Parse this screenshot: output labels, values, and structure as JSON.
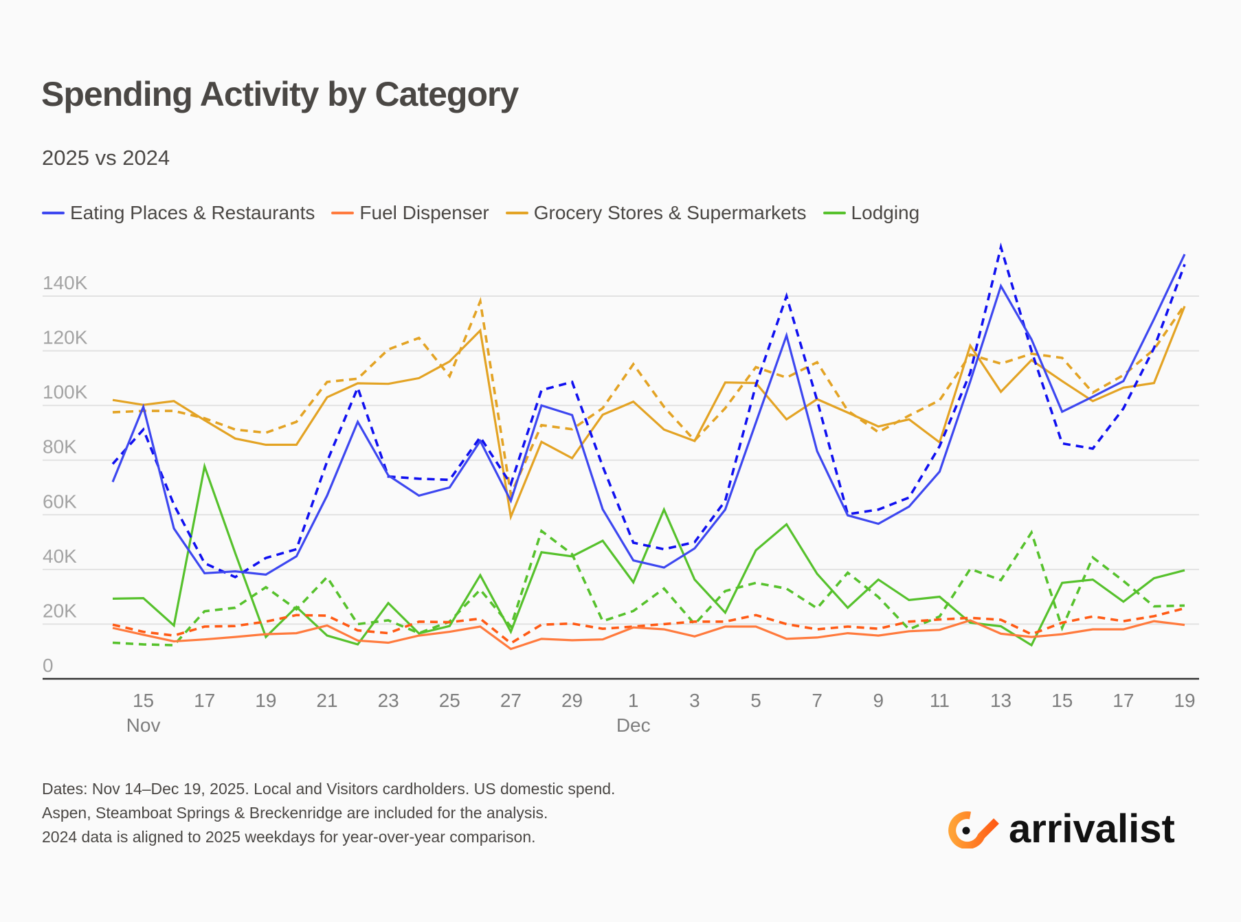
{
  "header": {
    "title": "Spending Activity by Category",
    "subtitle": "2025 vs 2024"
  },
  "legend": [
    {
      "label": "Eating Places & Restaurants",
      "color": "#3d47f0"
    },
    {
      "label": "Fuel Dispenser",
      "color": "#ff7a3d"
    },
    {
      "label": "Grocery Stores & Supermarkets",
      "color": "#e3a324"
    },
    {
      "label": "Lodging",
      "color": "#56c12c"
    }
  ],
  "footnote": [
    "Dates: Nov 14–Dec 19, 2025. Local and Visitors cardholders. US domestic spend.",
    "Aspen, Steamboat Springs & Breckenridge are included for the analysis.",
    "2024 data is aligned to 2025 weekdays for year-over-year comparison."
  ],
  "logo": {
    "text": "arrivalist",
    "icon": "arrivalist-eye-icon",
    "accent": "#ff7a1a"
  },
  "chart_data": {
    "type": "line",
    "title": "Spending Activity by Category",
    "subtitle": "2025 vs 2024",
    "xlabel": "",
    "ylabel": "",
    "ylim": [
      0,
      160000
    ],
    "yticks": [
      0,
      20000,
      40000,
      60000,
      80000,
      100000,
      120000,
      140000
    ],
    "ytick_labels": [
      "0",
      "20K",
      "40K",
      "60K",
      "80K",
      "100K",
      "120K",
      "140K"
    ],
    "grid": true,
    "legend_position": "top-left",
    "line_style_note": "solid = 2025, dashed = 2024",
    "x": [
      "Nov 14",
      "Nov 15",
      "Nov 16",
      "Nov 17",
      "Nov 18",
      "Nov 19",
      "Nov 20",
      "Nov 21",
      "Nov 22",
      "Nov 23",
      "Nov 24",
      "Nov 25",
      "Nov 26",
      "Nov 27",
      "Nov 28",
      "Nov 29",
      "Nov 30",
      "Dec 1",
      "Dec 2",
      "Dec 3",
      "Dec 4",
      "Dec 5",
      "Dec 6",
      "Dec 7",
      "Dec 8",
      "Dec 9",
      "Dec 10",
      "Dec 11",
      "Dec 12",
      "Dec 13",
      "Dec 14",
      "Dec 15",
      "Dec 16",
      "Dec 17",
      "Dec 18",
      "Dec 19"
    ],
    "xticks": [
      {
        "index": 1,
        "label": "15",
        "month": "Nov"
      },
      {
        "index": 3,
        "label": "17"
      },
      {
        "index": 5,
        "label": "19"
      },
      {
        "index": 7,
        "label": "21"
      },
      {
        "index": 9,
        "label": "23"
      },
      {
        "index": 11,
        "label": "25"
      },
      {
        "index": 13,
        "label": "27"
      },
      {
        "index": 15,
        "label": "29"
      },
      {
        "index": 17,
        "label": "1",
        "month": "Dec"
      },
      {
        "index": 19,
        "label": "3"
      },
      {
        "index": 21,
        "label": "5"
      },
      {
        "index": 23,
        "label": "7"
      },
      {
        "index": 25,
        "label": "9"
      },
      {
        "index": 27,
        "label": "11"
      },
      {
        "index": 29,
        "label": "13"
      },
      {
        "index": 31,
        "label": "15"
      },
      {
        "index": 33,
        "label": "17"
      },
      {
        "index": 35,
        "label": "19"
      }
    ],
    "series": [
      {
        "name": "Eating Places & Restaurants",
        "year": "2025",
        "style": "solid",
        "color": "#3d47f0",
        "values": [
          72000,
          99500,
          55000,
          38600,
          39300,
          38100,
          44800,
          67000,
          94000,
          74400,
          67000,
          70000,
          87000,
          65100,
          100000,
          96500,
          62000,
          43300,
          40700,
          47700,
          61900,
          93700,
          125600,
          83300,
          59800,
          56700,
          63000,
          75800,
          108800,
          143700,
          124200,
          97700,
          103200,
          108900,
          131600,
          155300
        ]
      },
      {
        "name": "Eating Places & Restaurants",
        "year": "2024",
        "style": "dashed",
        "color": "#1010f0",
        "values": [
          78600,
          91200,
          63700,
          42300,
          37200,
          44200,
          47400,
          79500,
          106500,
          74000,
          73200,
          72800,
          88400,
          71200,
          105600,
          108600,
          77700,
          49800,
          47400,
          50000,
          65100,
          107400,
          140000,
          101900,
          60200,
          61900,
          66300,
          85100,
          112000,
          157900,
          120000,
          86100,
          84200,
          98900,
          121000,
          151600
        ]
      },
      {
        "name": "Fuel Dispenser",
        "year": "2025",
        "style": "solid",
        "color": "#ff7a3d",
        "values": [
          18600,
          16100,
          13700,
          14400,
          15300,
          16300,
          16700,
          19500,
          14000,
          13200,
          15800,
          17200,
          19100,
          10900,
          14600,
          14100,
          14400,
          18800,
          18100,
          15500,
          19100,
          19100,
          14600,
          15100,
          16700,
          15800,
          17400,
          17900,
          21400,
          16500,
          15300,
          16300,
          18100,
          18100,
          21100,
          19700
        ]
      },
      {
        "name": "Fuel Dispenser",
        "year": "2024",
        "style": "dashed",
        "color": "#ff5a14",
        "values": [
          19800,
          17200,
          15800,
          19100,
          19300,
          20900,
          23300,
          23100,
          17700,
          16700,
          20900,
          20700,
          22000,
          13000,
          19800,
          20200,
          18300,
          19100,
          20000,
          20900,
          20900,
          23300,
          20000,
          18100,
          19100,
          18300,
          20900,
          21700,
          22300,
          21600,
          16300,
          20500,
          22800,
          21100,
          22900,
          25800
        ]
      },
      {
        "name": "Grocery Stores & Supermarkets",
        "year": "2025",
        "style": "solid",
        "color": "#e3a324",
        "values": [
          102000,
          100200,
          101600,
          94600,
          87900,
          85600,
          85600,
          103000,
          108100,
          107900,
          110000,
          116100,
          127400,
          59300,
          86700,
          80700,
          96600,
          101400,
          91200,
          87000,
          108400,
          108200,
          94900,
          102300,
          97400,
          92300,
          94900,
          86500,
          121900,
          105000,
          116600,
          108900,
          101600,
          106500,
          108200,
          136300
        ]
      },
      {
        "name": "Grocery Stores & Supermarkets",
        "year": "2024",
        "style": "dashed",
        "color": "#e3a324",
        "values": [
          97500,
          98000,
          98000,
          95300,
          91200,
          90000,
          94000,
          108600,
          109800,
          120500,
          124700,
          110700,
          138100,
          67400,
          92800,
          91300,
          99000,
          115100,
          99500,
          87200,
          99000,
          114000,
          110200,
          115800,
          98100,
          90200,
          96300,
          101900,
          118600,
          115300,
          118900,
          117400,
          104700,
          111100,
          120500,
          136800
        ]
      },
      {
        "name": "Lodging",
        "year": "2025",
        "style": "solid",
        "color": "#56c12c",
        "values": [
          29300,
          29500,
          19500,
          77700,
          46000,
          15300,
          26300,
          15800,
          12600,
          27700,
          16600,
          19300,
          37900,
          17200,
          46300,
          44800,
          50500,
          35300,
          61900,
          36300,
          24200,
          47000,
          56500,
          38400,
          26000,
          36300,
          28800,
          30000,
          20500,
          19200,
          12300,
          35100,
          36300,
          28200,
          36800,
          39700
        ]
      },
      {
        "name": "Lodging",
        "year": "2024",
        "style": "dashed",
        "color": "#56c12c",
        "values": [
          13200,
          12600,
          12300,
          24700,
          26000,
          33500,
          25400,
          37200,
          20000,
          21400,
          16700,
          20900,
          32600,
          19100,
          54100,
          45600,
          21100,
          24800,
          33000,
          20000,
          32100,
          35100,
          33000,
          25800,
          38800,
          29900,
          18100,
          22800,
          40200,
          36100,
          53500,
          18600,
          44400,
          35800,
          26500,
          26800
        ]
      }
    ]
  }
}
